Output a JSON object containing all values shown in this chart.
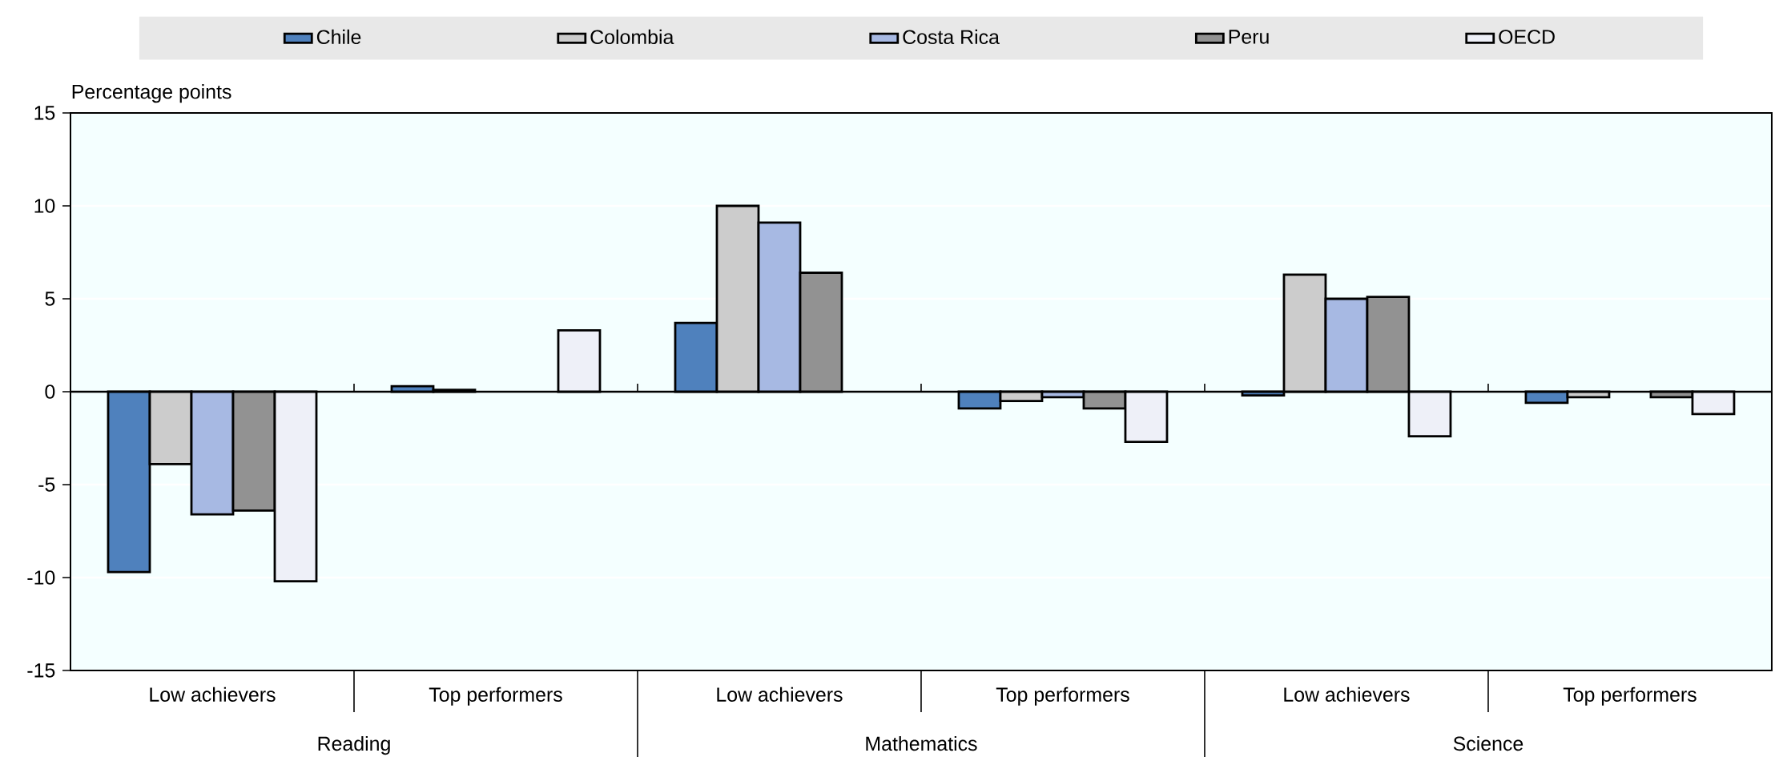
{
  "chart_data": {
    "type": "bar",
    "ylabel": "Percentage points",
    "categories": [
      "Low achievers",
      "Top performers",
      "Low achievers",
      "Top performers",
      "Low achievers",
      "Top performers"
    ],
    "annotations": [
      "Reading",
      "Mathematics",
      "Science"
    ],
    "series": [
      {
        "name": "Chile",
        "color": "#4f81bd",
        "values": [
          -9.7,
          0.3,
          3.7,
          -0.9,
          -0.2,
          -0.6
        ]
      },
      {
        "name": "Colombia",
        "color": "#cccccc",
        "values": [
          -3.9,
          0.1,
          10.0,
          -0.5,
          6.3,
          -0.3
        ]
      },
      {
        "name": "Costa Rica",
        "color": "#a7b9e3",
        "values": [
          -6.6,
          0,
          9.1,
          -0.3,
          5.0,
          0
        ]
      },
      {
        "name": "Peru",
        "color": "#929292",
        "values": [
          -6.4,
          0,
          6.4,
          -0.9,
          5.1,
          -0.3
        ]
      },
      {
        "name": "OECD",
        "color": "#eef0f8",
        "values": [
          -10.2,
          3.3,
          0,
          -2.7,
          -2.4,
          -1.2
        ]
      }
    ],
    "ylim": [
      -15,
      15
    ],
    "yticks": [
      -15,
      -10,
      -5,
      0,
      5,
      10,
      15
    ],
    "grid": "y",
    "legend": "top"
  }
}
